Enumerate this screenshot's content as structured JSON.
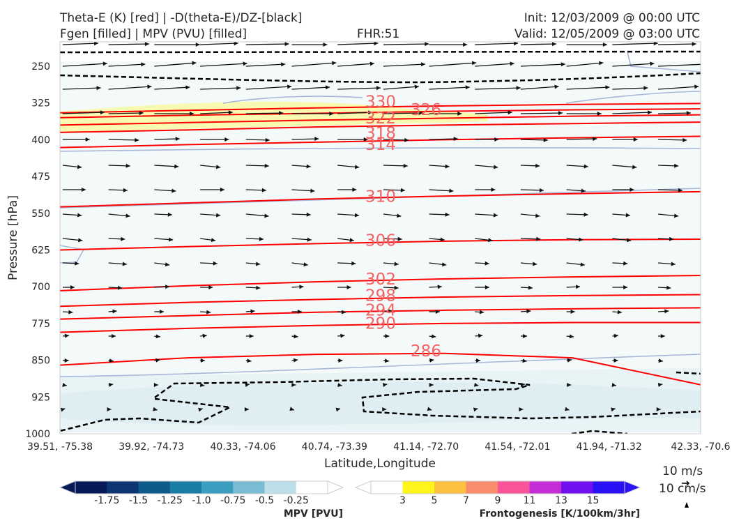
{
  "header": {
    "title_left_1": "Theta-E (K) [red] | -D(theta-E)/DZ-[black]",
    "title_left_2": "Fgen [filled] | MPV (PVU) [filled]",
    "fhr": "FHR:51",
    "init": "Init: 12/03/2009 @ 00:00 UTC",
    "valid": "Valid: 12/05/2009 @ 03:00 UTC"
  },
  "chart_data": {
    "type": "cross-section",
    "xlabel": "Latitude,Longitude",
    "ylabel": "Pressure [hPa]",
    "x_ticks": [
      "39.51, -75.38",
      "39.92, -74.73",
      "40.33, -74.06",
      "40.74, -73.39",
      "41.14, -72.70",
      "41.54, -72.01",
      "41.94, -71.32",
      "42.33, -70.6"
    ],
    "y_ticks": [
      "250",
      "325",
      "400",
      "475",
      "550",
      "625",
      "700",
      "775",
      "850",
      "925",
      "1000"
    ],
    "y_tick_values": [
      250,
      325,
      400,
      475,
      550,
      625,
      700,
      775,
      850,
      925,
      1000
    ],
    "ylim": [
      1000,
      200
    ],
    "y_inverted": true,
    "theta_e_contours": [
      {
        "label": "330",
        "pressure": [
          345,
          340,
          335,
          331,
          328,
          326
        ]
      },
      {
        "label": "326",
        "pressure": [
          355,
          350,
          346,
          342,
          339,
          337
        ]
      },
      {
        "label": "322",
        "pressure": [
          370,
          365,
          360,
          356,
          352,
          349
        ]
      },
      {
        "label": "318",
        "pressure": [
          385,
          380,
          374,
          370,
          367,
          364
        ]
      },
      {
        "label": "314",
        "pressure": [
          416,
          410,
          405,
          400,
          396,
          393
        ]
      },
      {
        "label": "310",
        "pressure": [
          537,
          529,
          521,
          515,
          510,
          506
        ]
      },
      {
        "label": "306",
        "pressure": [
          625,
          618,
          612,
          607,
          604,
          603
        ]
      },
      {
        "label": "302",
        "pressure": [
          708,
          698,
          690,
          684,
          680,
          677
        ]
      },
      {
        "label": "298",
        "pressure": [
          740,
          732,
          726,
          721,
          718,
          716
        ]
      },
      {
        "label": "294",
        "pressure": [
          766,
          759,
          752,
          748,
          745,
          743
        ]
      },
      {
        "label": "290",
        "pressure": [
          793,
          785,
          779,
          775,
          773,
          773
        ]
      },
      {
        "label": "286",
        "pressure": [
          860,
          845,
          838,
          836,
          845,
          900
        ]
      }
    ],
    "labels_shown": [
      "330",
      "326",
      "322",
      "318",
      "314",
      "310",
      "306",
      "302",
      "298",
      "294",
      "290",
      "286"
    ],
    "mpv_colorbar": {
      "title": "MPV [PVU]",
      "ticks": [
        "-1.75",
        "-1.5",
        "-1.25",
        "-1.0",
        "-0.75",
        "-0.5",
        "-0.25"
      ],
      "colors": [
        "#08195a",
        "#0b3573",
        "#0e5a8a",
        "#1b7ea6",
        "#3b9dbf",
        "#79bcd3",
        "#bcdfe9",
        "#ffffff"
      ]
    },
    "fgen_colorbar": {
      "title": "Frontogenesis [K/100km/3hr]",
      "ticks": [
        "3",
        "5",
        "7",
        "9",
        "11",
        "13",
        "15"
      ],
      "colors": [
        "#ffffff",
        "#fff51a",
        "#fdc040",
        "#fa8c6e",
        "#f9549a",
        "#c52ed6",
        "#7010ef",
        "#2a12f6"
      ]
    },
    "vector_key": {
      "label_1": "10 m/s",
      "label_2": "10 cm/s"
    },
    "grid": false
  },
  "icons": {
    "vector_key_arrow": "arrow-right-icon",
    "vertical_key_arrow": "arrow-up-icon"
  }
}
